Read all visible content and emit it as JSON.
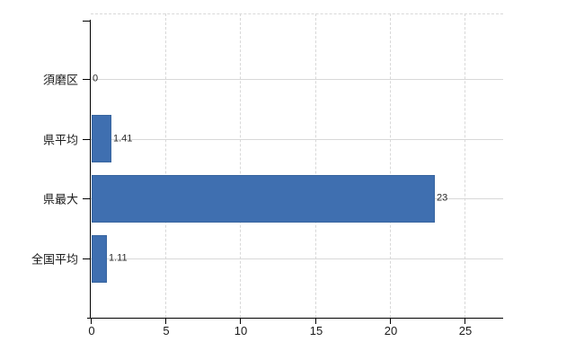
{
  "chart_data": {
    "type": "bar",
    "orientation": "horizontal",
    "title": "",
    "xlabel": "",
    "ylabel": "",
    "categories": [
      "須磨区",
      "県平均",
      "県最大",
      "全国平均"
    ],
    "values": [
      0,
      1.41,
      23,
      1.11
    ],
    "value_labels": [
      "0",
      "1.41",
      "23",
      "1.11"
    ],
    "x_ticks": [
      0,
      5,
      10,
      15,
      20,
      25
    ],
    "x_tick_labels": [
      "0",
      "5",
      "10",
      "15",
      "20",
      "25"
    ],
    "xlim": [
      0,
      27.6
    ],
    "grid": {
      "horizontal": "solid line at each category center",
      "vertical": "dashed line at each x tick except 0"
    },
    "legend": "none",
    "colors": {
      "bar": "#3f6fb0",
      "bar_edge": "#38659f",
      "axis": "#000000",
      "gridline": "#d8d8d8",
      "plot_border_dashed": "#d8d8d8",
      "category_label": "#1a1a1a",
      "value_label": "#2a2a2a",
      "tick_label": "#1a1a1a",
      "background": "#ffffff"
    }
  }
}
